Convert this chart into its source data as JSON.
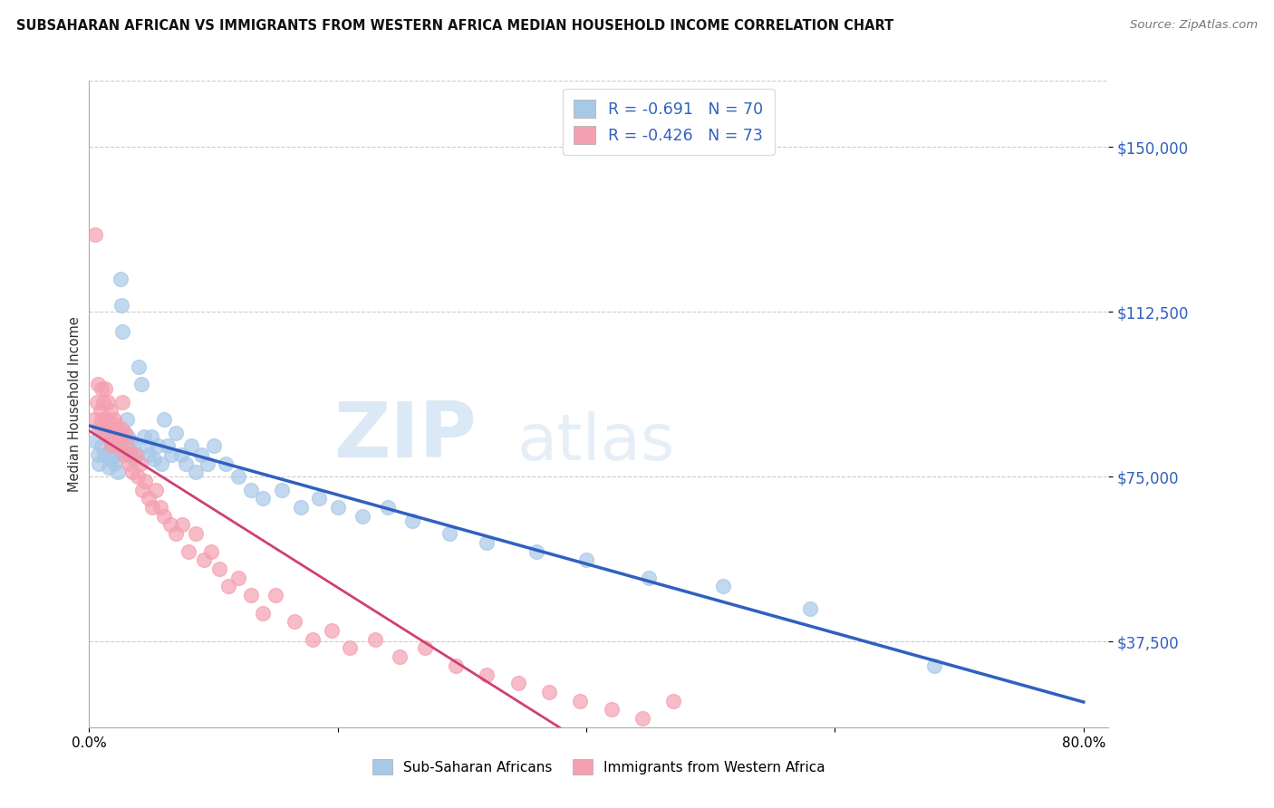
{
  "title": "SUBSAHARAN AFRICAN VS IMMIGRANTS FROM WESTERN AFRICA MEDIAN HOUSEHOLD INCOME CORRELATION CHART",
  "source": "Source: ZipAtlas.com",
  "ylabel": "Median Household Income",
  "yticks": [
    37500,
    75000,
    112500,
    150000
  ],
  "ytick_labels": [
    "$37,500",
    "$75,000",
    "$112,500",
    "$150,000"
  ],
  "xlim": [
    0.0,
    0.82
  ],
  "ylim": [
    18000,
    165000
  ],
  "legend1_label": "R = -0.691   N = 70",
  "legend2_label": "R = -0.426   N = 73",
  "legend_bottom_label1": "Sub-Saharan Africans",
  "legend_bottom_label2": "Immigrants from Western Africa",
  "blue_color": "#a8c8e8",
  "pink_color": "#f4a0b0",
  "trend_blue": "#3060c0",
  "trend_pink": "#d04070",
  "watermark_zip": "ZIP",
  "watermark_atlas": "atlas",
  "background_color": "#ffffff",
  "blue_scatter_x": [
    0.005,
    0.007,
    0.008,
    0.01,
    0.01,
    0.012,
    0.013,
    0.015,
    0.015,
    0.016,
    0.017,
    0.018,
    0.019,
    0.02,
    0.02,
    0.021,
    0.022,
    0.022,
    0.023,
    0.024,
    0.025,
    0.026,
    0.027,
    0.028,
    0.03,
    0.031,
    0.032,
    0.033,
    0.035,
    0.036,
    0.038,
    0.04,
    0.042,
    0.044,
    0.046,
    0.048,
    0.05,
    0.052,
    0.055,
    0.058,
    0.06,
    0.063,
    0.066,
    0.07,
    0.074,
    0.078,
    0.082,
    0.086,
    0.09,
    0.095,
    0.1,
    0.11,
    0.12,
    0.13,
    0.14,
    0.155,
    0.17,
    0.185,
    0.2,
    0.22,
    0.24,
    0.26,
    0.29,
    0.32,
    0.36,
    0.4,
    0.45,
    0.51,
    0.58,
    0.68
  ],
  "blue_scatter_y": [
    83000,
    80000,
    78000,
    82000,
    86000,
    80000,
    85000,
    84000,
    80000,
    77000,
    83000,
    79000,
    82000,
    85000,
    78000,
    82000,
    80000,
    84000,
    76000,
    81000,
    120000,
    114000,
    108000,
    85000,
    88000,
    84000,
    80000,
    83000,
    82000,
    79000,
    80000,
    100000,
    96000,
    84000,
    82000,
    80000,
    84000,
    79000,
    82000,
    78000,
    88000,
    82000,
    80000,
    85000,
    80000,
    78000,
    82000,
    76000,
    80000,
    78000,
    82000,
    78000,
    75000,
    72000,
    70000,
    72000,
    68000,
    70000,
    68000,
    66000,
    68000,
    65000,
    62000,
    60000,
    58000,
    56000,
    52000,
    50000,
    45000,
    32000
  ],
  "pink_scatter_x": [
    0.004,
    0.005,
    0.006,
    0.007,
    0.008,
    0.009,
    0.01,
    0.01,
    0.011,
    0.012,
    0.013,
    0.013,
    0.014,
    0.015,
    0.015,
    0.016,
    0.017,
    0.018,
    0.018,
    0.019,
    0.02,
    0.02,
    0.021,
    0.022,
    0.023,
    0.024,
    0.025,
    0.026,
    0.027,
    0.028,
    0.029,
    0.03,
    0.032,
    0.033,
    0.035,
    0.037,
    0.039,
    0.041,
    0.043,
    0.045,
    0.048,
    0.051,
    0.054,
    0.057,
    0.06,
    0.065,
    0.07,
    0.075,
    0.08,
    0.086,
    0.092,
    0.098,
    0.105,
    0.112,
    0.12,
    0.13,
    0.14,
    0.15,
    0.165,
    0.18,
    0.195,
    0.21,
    0.23,
    0.25,
    0.27,
    0.295,
    0.32,
    0.345,
    0.37,
    0.395,
    0.42,
    0.445,
    0.47
  ],
  "pink_scatter_y": [
    88000,
    130000,
    92000,
    96000,
    86000,
    90000,
    95000,
    88000,
    92000,
    87000,
    95000,
    88000,
    84000,
    92000,
    88000,
    86000,
    90000,
    85000,
    82000,
    86000,
    88000,
    84000,
    87000,
    86000,
    85000,
    82000,
    84000,
    86000,
    92000,
    80000,
    85000,
    82000,
    78000,
    80000,
    76000,
    80000,
    75000,
    78000,
    72000,
    74000,
    70000,
    68000,
    72000,
    68000,
    66000,
    64000,
    62000,
    64000,
    58000,
    62000,
    56000,
    58000,
    54000,
    50000,
    52000,
    48000,
    44000,
    48000,
    42000,
    38000,
    40000,
    36000,
    38000,
    34000,
    36000,
    32000,
    30000,
    28000,
    26000,
    24000,
    22000,
    20000,
    24000
  ]
}
